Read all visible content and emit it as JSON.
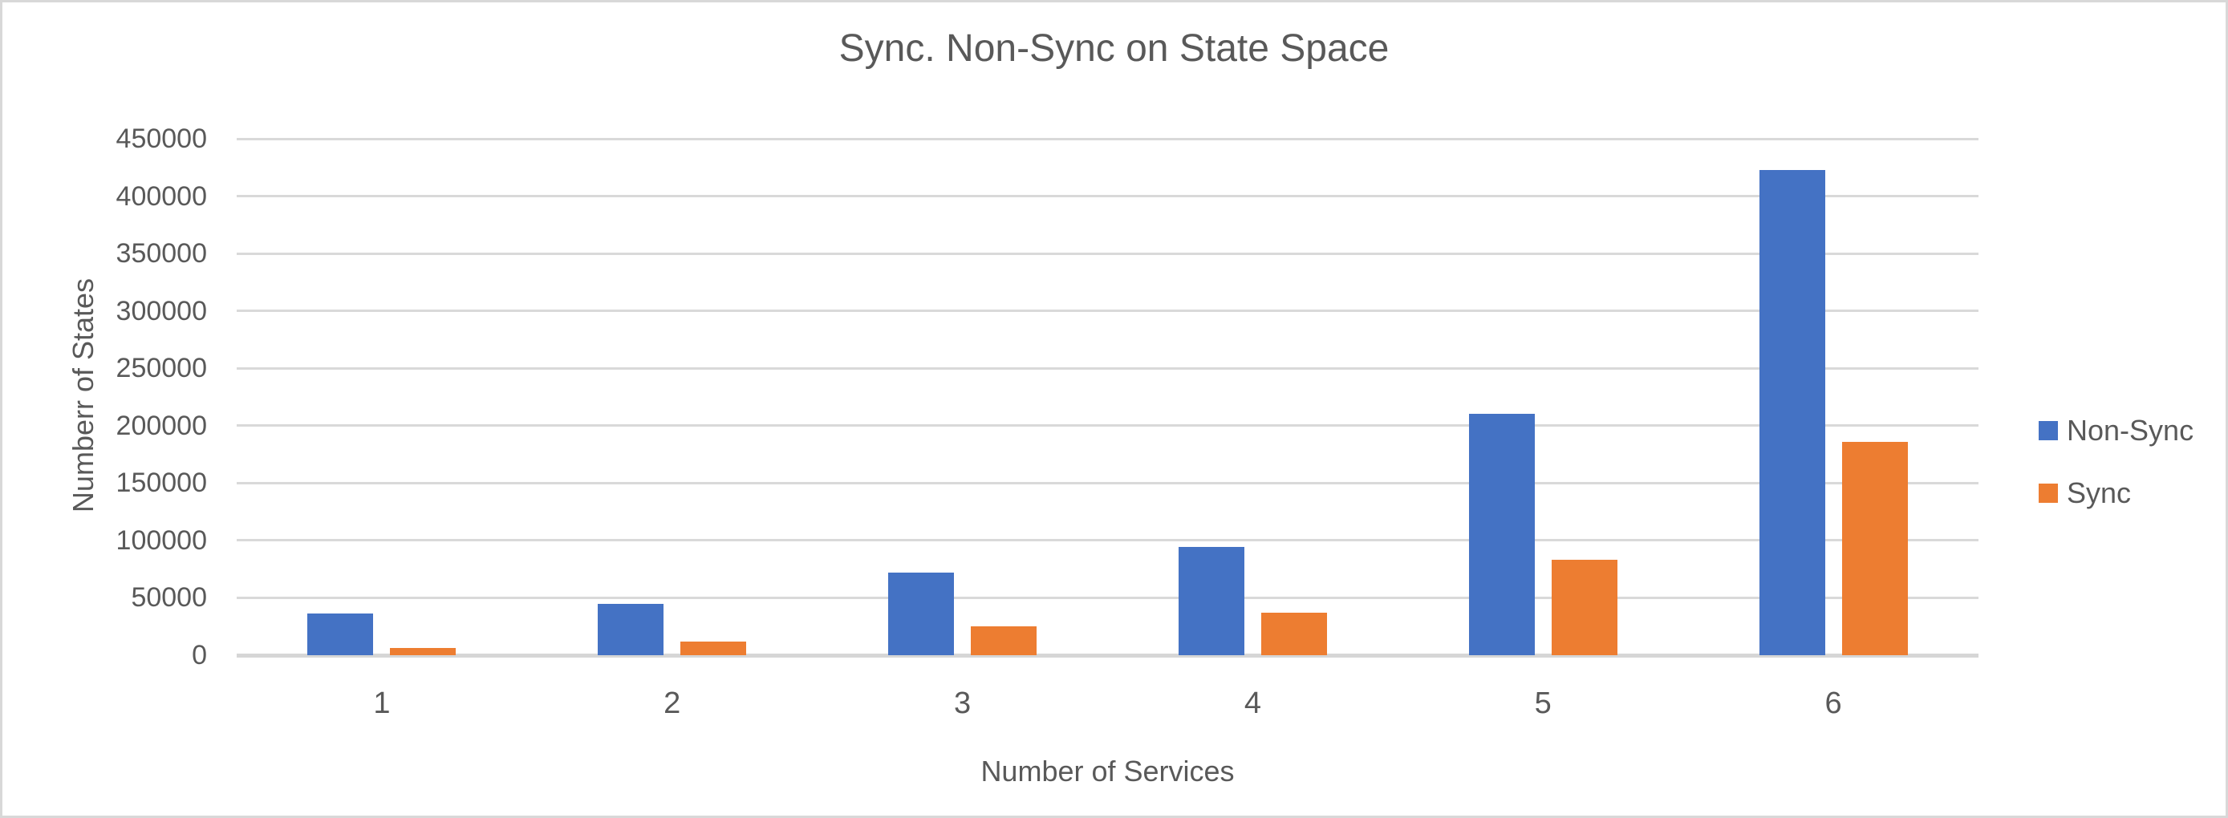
{
  "chart_data": {
    "type": "bar",
    "title": "Sync. Non-Sync on State Space",
    "xlabel": "Number of Services",
    "ylabel": "Numberr of States",
    "categories": [
      "1",
      "2",
      "3",
      "4",
      "5",
      "6"
    ],
    "series": [
      {
        "name": "Non-Sync",
        "color": "#4472C4",
        "values": [
          36000,
          45000,
          72000,
          94000,
          210000,
          423000
        ]
      },
      {
        "name": "Sync",
        "color": "#ED7D31",
        "values": [
          6000,
          12000,
          25000,
          37000,
          83000,
          186000
        ]
      }
    ],
    "ylim": [
      0,
      450000
    ],
    "ytick_step": 50000,
    "ytick_labels": [
      "0",
      "50000",
      "100000",
      "150000",
      "200000",
      "250000",
      "300000",
      "350000",
      "400000",
      "450000"
    ],
    "grid": true,
    "legend_position": "right"
  },
  "colors": {
    "text": "#595959",
    "gridline": "#D9D9D9",
    "axis_line": "#D6D6D6",
    "frame_border": "#D8D8D8",
    "background": "#FFFFFF"
  }
}
